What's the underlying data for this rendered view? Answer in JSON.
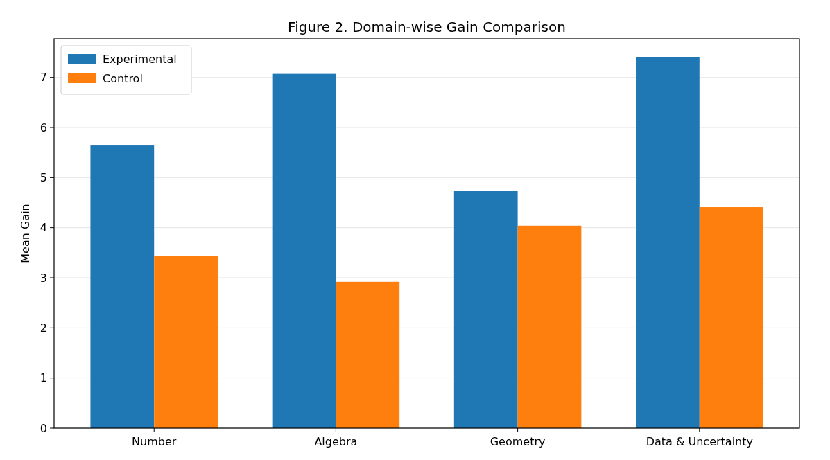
{
  "chart_data": {
    "type": "bar",
    "title": "Figure 2. Domain-wise Gain Comparison",
    "ylabel": "Mean Gain",
    "categories": [
      "Number",
      "Algebra",
      "Geometry",
      "Data & Uncertainty"
    ],
    "series": [
      {
        "name": "Experimental",
        "color": "#1f77b4",
        "values": [
          5.64,
          7.07,
          4.73,
          7.4
        ]
      },
      {
        "name": "Control",
        "color": "#ff7f0e",
        "values": [
          3.43,
          2.92,
          4.04,
          4.41
        ]
      }
    ],
    "ylim": [
      0,
      7.77
    ],
    "yticks": [
      0,
      1,
      2,
      3,
      4,
      5,
      6,
      7
    ],
    "grid": "y",
    "legend": "top left"
  }
}
